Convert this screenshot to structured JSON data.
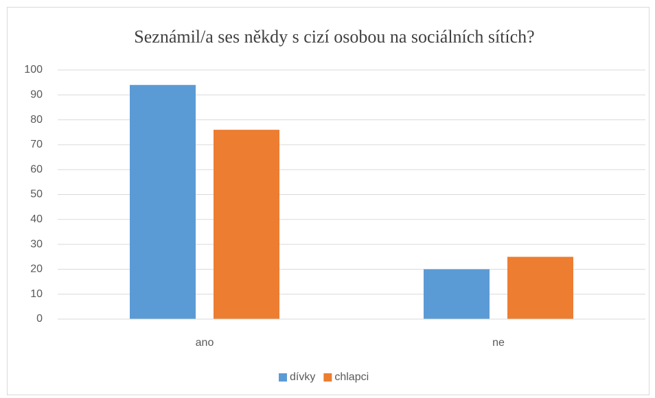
{
  "chart_data": {
    "type": "bar",
    "title": "Seznámil/a ses někdy s cizí osobou na sociálních sítích?",
    "categories": [
      "ano",
      "ne"
    ],
    "series": [
      {
        "name": "dívky",
        "color": "#5b9bd5",
        "values": [
          94,
          20
        ]
      },
      {
        "name": "chlapci",
        "color": "#ed7d31",
        "values": [
          76,
          25
        ]
      }
    ],
    "ylim": [
      0,
      100
    ],
    "yticks": [
      0,
      10,
      20,
      30,
      40,
      50,
      60,
      70,
      80,
      90,
      100
    ],
    "grid": true,
    "legend": "bottom"
  }
}
